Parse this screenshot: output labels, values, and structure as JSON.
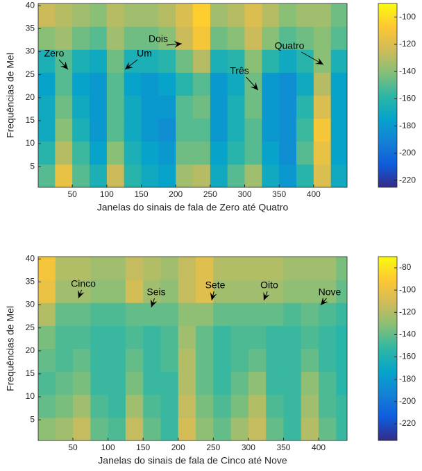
{
  "chart_data": [
    {
      "type": "heatmap",
      "xlabel": "Janelas do sinais de fala de Zero até Quatro",
      "ylabel": "Frequências de Mel",
      "xlim": [
        0.5,
        448.5
      ],
      "ylim": [
        0.5,
        40.5
      ],
      "xticks": [
        50,
        100,
        150,
        200,
        250,
        300,
        350,
        400
      ],
      "yticks": [
        5,
        10,
        15,
        20,
        25,
        30,
        35,
        40
      ],
      "x_bins": [
        0.5,
        25,
        50,
        75,
        100,
        125,
        150,
        175,
        200,
        225,
        250,
        275,
        300,
        325,
        350,
        375,
        400,
        425,
        448.5
      ],
      "y_bins": [
        0.5,
        5.5,
        10.5,
        15.5,
        20.5,
        25.5,
        30.5,
        35.5,
        40.5
      ],
      "z": [
        [
          -150,
          -115,
          -150,
          -165,
          -125,
          -160,
          -170,
          -175,
          -135,
          -130,
          -170,
          -150,
          -135,
          -170,
          -180,
          -160,
          -120,
          -170
        ],
        [
          -160,
          -130,
          -155,
          -175,
          -140,
          -165,
          -175,
          -180,
          -145,
          -145,
          -175,
          -160,
          -150,
          -175,
          -185,
          -150,
          -115,
          -175
        ],
        [
          -170,
          -140,
          -165,
          -180,
          -150,
          -170,
          -180,
          -185,
          -150,
          -150,
          -180,
          -165,
          -150,
          -180,
          -185,
          -155,
          -110,
          -175
        ],
        [
          -170,
          -145,
          -170,
          -180,
          -150,
          -170,
          -180,
          -180,
          -150,
          -145,
          -180,
          -165,
          -145,
          -180,
          -185,
          -160,
          -120,
          -175
        ],
        [
          -175,
          -150,
          -175,
          -180,
          -150,
          -175,
          -180,
          -175,
          -160,
          -150,
          -180,
          -170,
          -145,
          -180,
          -185,
          -170,
          -130,
          -175
        ],
        [
          -165,
          -150,
          -165,
          -170,
          -145,
          -165,
          -165,
          -160,
          -145,
          -130,
          -165,
          -160,
          -140,
          -160,
          -170,
          -160,
          -140,
          -165
        ],
        [
          -140,
          -135,
          -145,
          -150,
          -135,
          -145,
          -145,
          -140,
          -125,
          -110,
          -145,
          -140,
          -125,
          -140,
          -150,
          -145,
          -140,
          -150
        ],
        [
          -125,
          -130,
          -135,
          -140,
          -130,
          -135,
          -135,
          -130,
          -120,
          -105,
          -135,
          -130,
          -120,
          -130,
          -140,
          -135,
          -135,
          -145
        ]
      ],
      "zlim": [
        -225,
        -90
      ],
      "colorbar_ticks": [
        -100,
        -120,
        -140,
        -160,
        -180,
        -200,
        -220
      ],
      "colormap": [
        "#352a87",
        "#0f5cdd",
        "#1481d6",
        "#06a4ca",
        "#2eb7a4",
        "#87bf77",
        "#d1bb59",
        "#fec832",
        "#f9fb0e"
      ],
      "annotations": [
        "Zero",
        "Um",
        "Dois",
        "Três",
        "Quatro"
      ]
    },
    {
      "type": "heatmap",
      "xlabel": "Janelas do sinais de fala de Cinco até Nove",
      "ylabel": "Frequências de Mel",
      "xlim": [
        0.5,
        440.5
      ],
      "ylim": [
        0.5,
        40.5
      ],
      "xticks": [
        50,
        100,
        150,
        200,
        250,
        300,
        350,
        400
      ],
      "yticks": [
        5,
        10,
        15,
        20,
        25,
        30,
        35,
        40
      ],
      "x_bins": [
        0.5,
        25,
        50,
        75,
        100,
        125,
        150,
        175,
        200,
        225,
        250,
        275,
        300,
        325,
        350,
        375,
        400,
        425,
        440.5
      ],
      "y_bins": [
        0.5,
        5.5,
        10.5,
        15.5,
        20.5,
        25.5,
        30.5,
        35.5,
        40.5
      ],
      "z": [
        [
          -130,
          -125,
          -115,
          -140,
          -145,
          -115,
          -140,
          -150,
          -110,
          -130,
          -140,
          -125,
          -115,
          -140,
          -150,
          -120,
          -140,
          -150
        ],
        [
          -140,
          -135,
          -125,
          -145,
          -150,
          -125,
          -145,
          -150,
          -115,
          -135,
          -145,
          -135,
          -120,
          -145,
          -150,
          -125,
          -145,
          -150
        ],
        [
          -145,
          -140,
          -135,
          -150,
          -150,
          -135,
          -150,
          -150,
          -120,
          -140,
          -150,
          -140,
          -130,
          -150,
          -150,
          -130,
          -145,
          -155
        ],
        [
          -140,
          -145,
          -140,
          -150,
          -150,
          -140,
          -150,
          -145,
          -120,
          -140,
          -150,
          -145,
          -140,
          -150,
          -150,
          -140,
          -150,
          -155
        ],
        [
          -135,
          -145,
          -145,
          -150,
          -150,
          -145,
          -150,
          -145,
          -125,
          -140,
          -150,
          -145,
          -145,
          -150,
          -150,
          -145,
          -150,
          -155
        ],
        [
          -120,
          -140,
          -140,
          -145,
          -145,
          -140,
          -140,
          -140,
          -130,
          -130,
          -140,
          -140,
          -140,
          -140,
          -145,
          -140,
          -145,
          -150
        ],
        [
          -100,
          -125,
          -125,
          -130,
          -130,
          -110,
          -125,
          -130,
          -115,
          -105,
          -125,
          -125,
          -125,
          -125,
          -130,
          -130,
          -130,
          -140
        ],
        [
          -95,
          -120,
          -120,
          -125,
          -125,
          -115,
          -120,
          -125,
          -115,
          -105,
          -120,
          -120,
          -120,
          -120,
          -125,
          -125,
          -125,
          -135
        ]
      ],
      "zlim": [
        -235,
        -70
      ],
      "colorbar_ticks": [
        -80,
        -100,
        -120,
        -140,
        -160,
        -180,
        -200,
        -220
      ],
      "colormap": [
        "#352a87",
        "#0f5cdd",
        "#1481d6",
        "#06a4ca",
        "#2eb7a4",
        "#87bf77",
        "#d1bb59",
        "#fec832",
        "#f9fb0e"
      ],
      "annotations": [
        "Cinco",
        "Seis",
        "Sete",
        "Oito",
        "Nove"
      ]
    }
  ]
}
